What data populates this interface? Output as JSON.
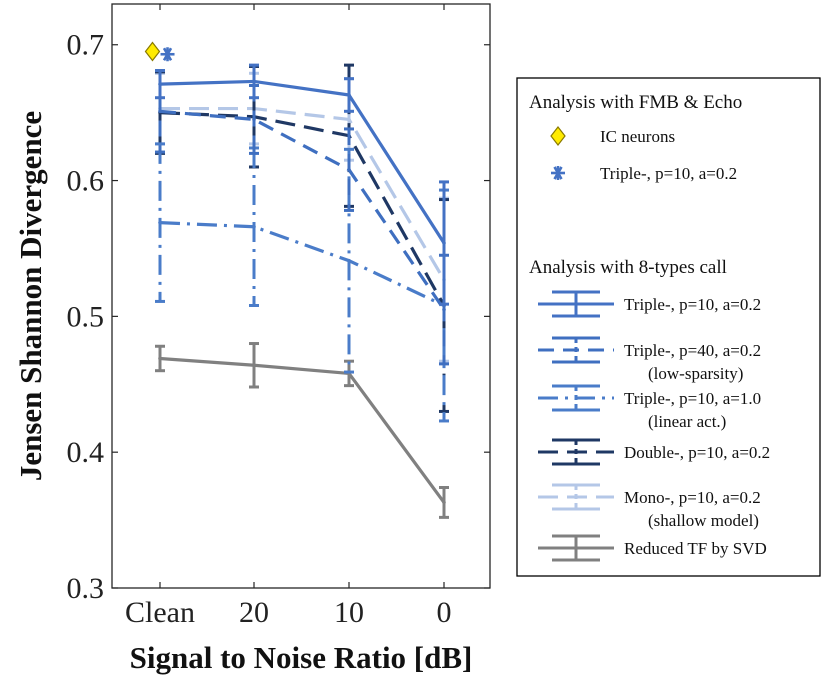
{
  "chart_data": {
    "type": "line",
    "xlabel": "Signal to Noise Ratio [dB]",
    "ylabel": "Jensen Shannon Divergence",
    "categories": [
      "Clean",
      "20",
      "10",
      "0"
    ],
    "ylim": [
      0.3,
      0.73
    ],
    "yticks": [
      "0.3",
      "0.4",
      "0.5",
      "0.6",
      "0.7"
    ],
    "grid": false,
    "legend_position": "right",
    "series": [
      {
        "name": "Triple-, p=10, a=0.2",
        "sub": "",
        "color": "#4472c4",
        "dash": "",
        "values": [
          0.671,
          0.673,
          0.663,
          0.554
        ],
        "err": [
          0.01,
          0.012,
          0.012,
          0.045
        ]
      },
      {
        "name": "Triple-, p=40, a=0.2",
        "sub": "(low-sparsity)",
        "color": "#3f6fc0",
        "dash": "16 9",
        "values": [
          0.651,
          0.645,
          0.608,
          0.505
        ],
        "err": [
          0.03,
          0.025,
          0.03,
          0.04
        ]
      },
      {
        "name": "Triple-, p=10, a=1.0",
        "sub": "(linear act.)",
        "color": "#4a7cc9",
        "dash": "20 7 3 7",
        "values": [
          0.569,
          0.566,
          0.541,
          0.508
        ],
        "err": [
          0.058,
          0.058,
          0.082,
          0.085
        ]
      },
      {
        "name": "Double-, p=10, a=0.2",
        "sub": "",
        "color": "#1f3864",
        "dash": "20 9",
        "values": [
          0.65,
          0.647,
          0.633,
          0.508
        ],
        "err": [
          0.03,
          0.037,
          0.052,
          0.078
        ]
      },
      {
        "name": "Mono-, p=10, a=0.2",
        "sub": "(shallow model)",
        "color": "#b4c7e7",
        "dash": "20 9",
        "values": [
          0.653,
          0.653,
          0.645,
          0.527
        ],
        "err": [
          0.026,
          0.026,
          0.03,
          0.06
        ]
      },
      {
        "name": "Reduced TF by SVD",
        "sub": "",
        "color": "#808080",
        "dash": "",
        "values": [
          0.469,
          0.464,
          0.458,
          0.363
        ],
        "err": [
          0.009,
          0.016,
          0.009,
          0.011
        ]
      }
    ],
    "markers": [
      {
        "name": "IC neurons",
        "x": "Clean",
        "offset": -0.08,
        "value": 0.695,
        "symbol": "diamond",
        "color": "#ffeb00",
        "stroke": "#8a7a00"
      },
      {
        "name": "Triple-, p=10, a=0.2",
        "x": "Clean",
        "offset": 0.08,
        "value": 0.693,
        "symbol": "asterisk",
        "color": "#4472c4"
      }
    ],
    "legend": {
      "title1": "Analysis with FMB & Echo",
      "title2": "Analysis with 8-types call"
    }
  }
}
